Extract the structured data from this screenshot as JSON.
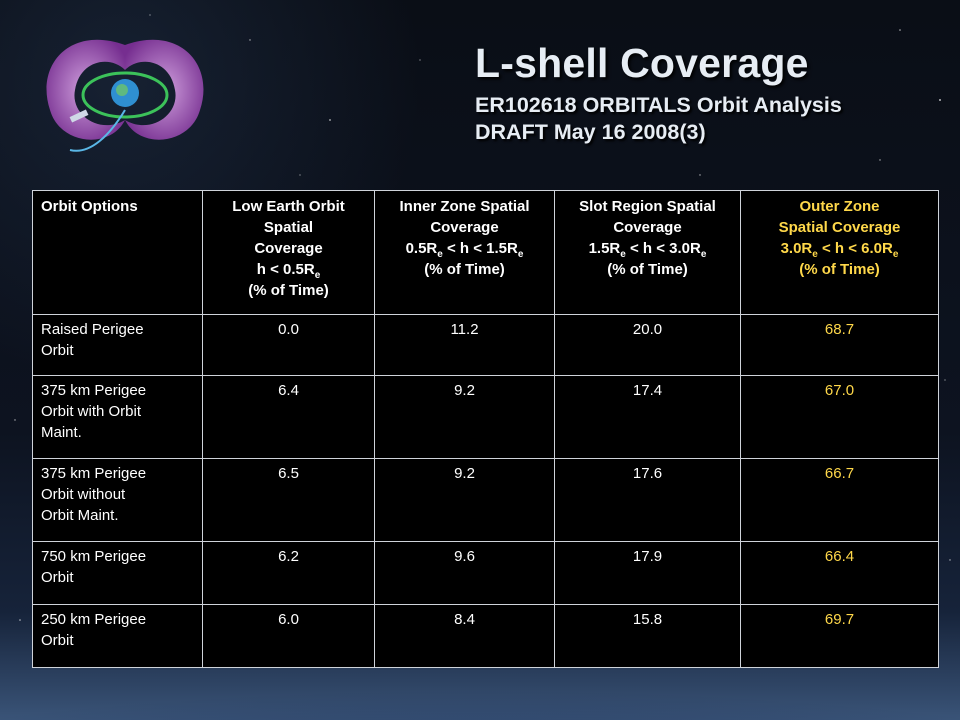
{
  "slide": {
    "title": "L-shell Coverage",
    "subtitle_line1": "ER102618 ORBITALS Orbit Analysis",
    "subtitle_line2": "DRAFT May 16 2008(3)"
  },
  "table": {
    "headers": {
      "col1": "Orbit Options",
      "col2": {
        "l1": "Low Earth Orbit",
        "l2": "Spatial",
        "l3": "Coverage",
        "l4a": "h < 0.5R",
        "l4sub": "e",
        "l5": "(% of Time)"
      },
      "col3": {
        "l1": "Inner Zone  Spatial",
        "l2": "Coverage",
        "l3a": "0.5R",
        "l3sub1": "e",
        "l3b": " < h < 1.5R",
        "l3sub2": "e",
        "l4": "(% of Time)"
      },
      "col4": {
        "l1": "Slot Region Spatial",
        "l2": "Coverage",
        "l3a": "1.5R",
        "l3sub1": "e",
        "l3b": " < h < 3.0R",
        "l3sub2": "e",
        "l4": "(% of Time)"
      },
      "col5": {
        "l1": "Outer Zone",
        "l2": "Spatial Coverage",
        "l3a": "3.0R",
        "l3sub1": "e",
        "l3b": " < h < 6.0R",
        "l3sub2": "e",
        "l4": "(% of Time)"
      }
    },
    "rows": [
      {
        "option": {
          "l1": "Raised Perigee",
          "l2": "Orbit",
          "l3": ""
        },
        "leo": "0.0",
        "inner": "11.2",
        "slot": "20.0",
        "outer": "68.7"
      },
      {
        "option": {
          "l1": "375 km Perigee",
          "l2": "Orbit with Orbit",
          "l3": "Maint."
        },
        "leo": "6.4",
        "inner": "9.2",
        "slot": "17.4",
        "outer": "67.0"
      },
      {
        "option": {
          "l1": "375 km Perigee",
          "l2": "Orbit without",
          "l3": "Orbit Maint."
        },
        "leo": "6.5",
        "inner": "9.2",
        "slot": "17.6",
        "outer": "66.7"
      },
      {
        "option": {
          "l1": "750 km Perigee",
          "l2": "Orbit",
          "l3": ""
        },
        "leo": "6.2",
        "inner": "9.6",
        "slot": "17.9",
        "outer": "66.4"
      },
      {
        "option": {
          "l1": "250 km Perigee",
          "l2": "Orbit",
          "l3": ""
        },
        "leo": "6.0",
        "inner": "8.4",
        "slot": "15.8",
        "outer": "69.7"
      }
    ]
  },
  "colors": {
    "accent_gold": "#ffd84a",
    "text": "#ffffff",
    "title": "#e7edf4"
  },
  "icons": {
    "logo": "radiation-belt-diagram-icon"
  }
}
